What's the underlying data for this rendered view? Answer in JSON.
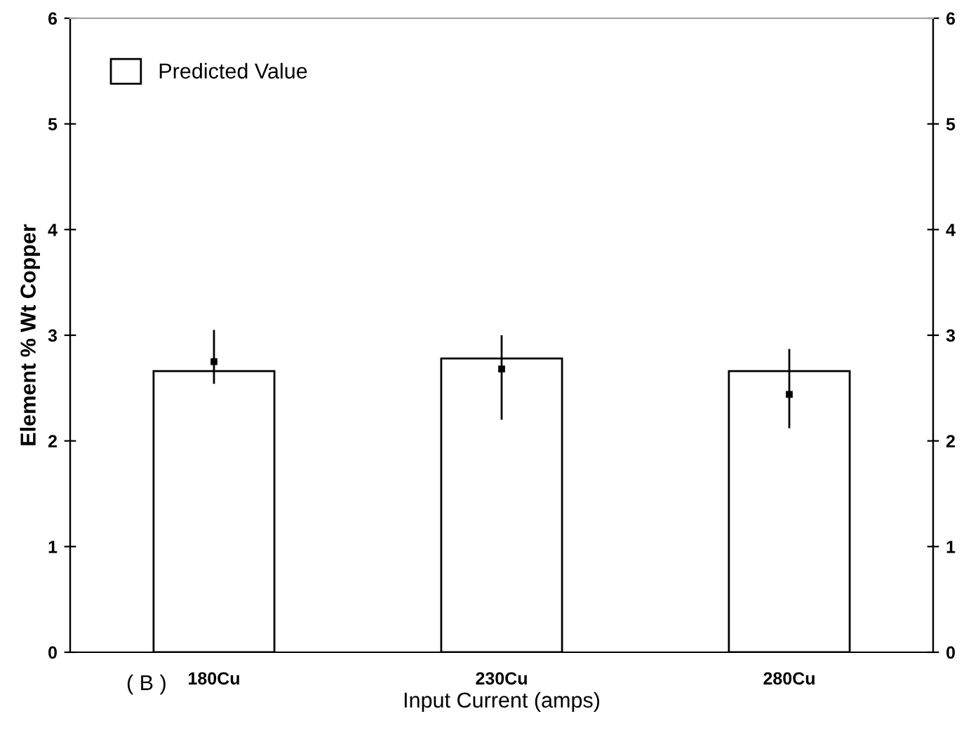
{
  "chart_data": {
    "type": "bar",
    "xlabel": "Input Current (amps)",
    "ylabel": "Element % Wt Copper",
    "categories": [
      "180Cu",
      "230Cu",
      "280Cu"
    ],
    "series": [
      {
        "name": "Predicted Value",
        "color": "#ffffff",
        "values": [
          2.66,
          2.78,
          2.66
        ]
      },
      {
        "type": "scatter",
        "color": "#000000",
        "x": [
          "180Cu",
          "230Cu",
          "280Cu"
        ],
        "values": [
          2.75,
          2.68,
          2.44
        ],
        "errors": [
          [
            2.54,
            3.05
          ],
          [
            2.2,
            3.0
          ],
          [
            2.12,
            2.87
          ]
        ],
        "marker": "square"
      }
    ],
    "ylim": [
      0,
      6
    ],
    "yticks": [
      0,
      1,
      2,
      3,
      4,
      5,
      6
    ],
    "y2lim": [
      0,
      6
    ],
    "y2ticks": [
      0,
      1,
      2,
      3,
      4,
      5,
      6
    ],
    "annotations": [
      "( B )"
    ],
    "legend": "top left",
    "grid": false
  }
}
